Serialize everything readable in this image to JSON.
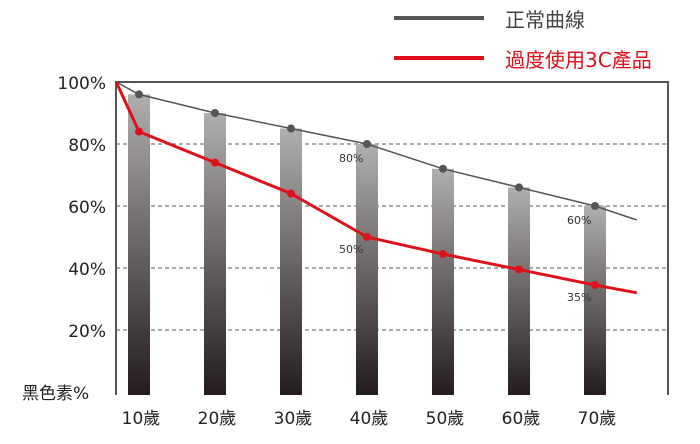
{
  "chart_data": {
    "type": "line",
    "title": "",
    "xlabel": "",
    "ylabel": "黑色素%",
    "ylim": [
      0,
      100
    ],
    "xlim": [
      7,
      80
    ],
    "yticks": [
      20,
      40,
      60,
      80,
      100
    ],
    "ytick_labels": [
      "20%",
      "40%",
      "60%",
      "80%",
      "100%"
    ],
    "categories": [
      "10歲",
      "20歲",
      "30歲",
      "40歲",
      "50歲",
      "60歲",
      "70歲"
    ],
    "category_x": [
      10,
      20,
      30,
      40,
      50,
      60,
      70
    ],
    "grid": "horizontal dashed",
    "legend_position": "top-right",
    "bars": {
      "x": [
        10,
        20,
        30,
        40,
        50,
        60,
        70
      ],
      "values": [
        96,
        90,
        85,
        80,
        72,
        66,
        60
      ],
      "gradient": [
        "#b0aeae",
        "#241c1c"
      ]
    },
    "series": [
      {
        "name": "正常曲線",
        "color": "#555555",
        "x": [
          7,
          10,
          20,
          30,
          40,
          50,
          60,
          70,
          75.5
        ],
        "values": [
          100,
          96,
          90,
          85,
          80,
          72,
          66,
          60,
          55.5
        ]
      },
      {
        "name": "過度使用3C產品",
        "color": "#e0101a",
        "x": [
          7,
          10,
          20,
          30,
          40,
          50,
          60,
          70,
          75.5
        ],
        "values": [
          100,
          84,
          74,
          64,
          50,
          44.5,
          39.5,
          34.5,
          32
        ]
      }
    ],
    "annotations": [
      {
        "text": "80%",
        "x": 40,
        "y": 80,
        "series": 0
      },
      {
        "text": "60%",
        "x": 70,
        "y": 60,
        "series": 0
      },
      {
        "text": "50%",
        "x": 40,
        "y": 50,
        "series": 1
      },
      {
        "text": "35%",
        "x": 70,
        "y": 34.5,
        "series": 1
      }
    ]
  }
}
